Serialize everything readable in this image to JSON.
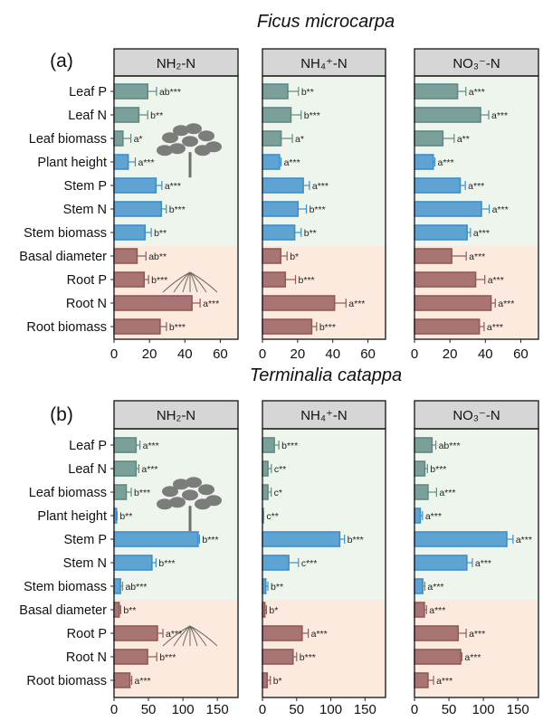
{
  "chart_data": [
    {
      "type": "bar",
      "orientation": "horizontal",
      "panel_label": "(a)",
      "title": "Ficus microcarpa",
      "categories": [
        "Leaf P",
        "Leaf N",
        "Leaf biomass",
        "Plant height",
        "Stem P",
        "Stem N",
        "Stem biomass",
        "Basal diameter",
        "Root P",
        "Root N",
        "Root biomass"
      ],
      "category_groups": {
        "leaf": [
          0,
          1,
          2
        ],
        "stem": [
          3,
          4,
          5,
          6
        ],
        "root": [
          7,
          8,
          9,
          10
        ]
      },
      "xlim": [
        0,
        70
      ],
      "xticks": [
        0,
        20,
        40,
        60
      ],
      "facets": [
        {
          "name": "NH₂-N",
          "values": [
            19,
            14,
            5,
            8,
            23.7,
            26.7,
            17.5,
            13,
            17,
            44,
            26
          ],
          "errors": [
            5,
            5,
            4.5,
            4,
            3.3,
            2.8,
            3.5,
            5,
            2.5,
            4.6,
            3.6
          ],
          "labels": [
            "ab***",
            "b**",
            "a*",
            "a***",
            "a***",
            "b***",
            "b**",
            "ab**",
            "b***",
            "a***",
            "b***"
          ]
        },
        {
          "name": "NH₄⁺-N",
          "values": [
            14.4,
            16.2,
            10.6,
            9.7,
            23.2,
            20.2,
            18.3,
            10.4,
            13,
            41,
            28
          ],
          "errors": [
            6.1,
            5.8,
            6.4,
            0.9,
            3.5,
            4.8,
            3.7,
            3.6,
            5.8,
            6.5,
            2.8
          ],
          "labels": [
            "b**",
            "b***",
            "a*",
            "a***",
            "a***",
            "b***",
            "b**",
            "b*",
            "b***",
            "a***",
            "b***"
          ]
        },
        {
          "name": "NO₃⁻-N",
          "values": [
            24.3,
            37.3,
            16,
            10.6,
            25.8,
            37.8,
            29.7,
            21,
            34.5,
            43.2,
            36.6
          ],
          "errors": [
            4.7,
            4.6,
            6.4,
            0.9,
            2.9,
            4.4,
            1.9,
            8.2,
            5.2,
            2.4,
            2.7
          ],
          "labels": [
            "a***",
            "a***",
            "a**",
            "a***",
            "a***",
            "a***",
            "a***",
            "a***",
            "a***",
            "a***",
            "a***"
          ]
        }
      ]
    },
    {
      "type": "bar",
      "orientation": "horizontal",
      "panel_label": "(b)",
      "title": "Terminalia catappa",
      "categories": [
        "Leaf P",
        "Leaf N",
        "Leaf biomass",
        "Plant height",
        "Stem P",
        "Stem N",
        "Stem biomass",
        "Basal diameter",
        "Root P",
        "Root N",
        "Root biomass"
      ],
      "category_groups": {
        "leaf": [
          0,
          1,
          2
        ],
        "stem": [
          3,
          4,
          5,
          6
        ],
        "root": [
          7,
          8,
          9,
          10
        ]
      },
      "xlim": [
        0,
        180
      ],
      "xticks": [
        0,
        50,
        100,
        150
      ],
      "facets": [
        {
          "name": "NH₂-N",
          "values": [
            32,
            32,
            17.7,
            3.5,
            122,
            55,
            9.3,
            7.5,
            63,
            48.7,
            23
          ],
          "errors": [
            5.6,
            4,
            7.3,
            0.9,
            2,
            6,
            3.1,
            2.2,
            8,
            13.3,
            2.7
          ],
          "labels": [
            "a***",
            "a***",
            "b***",
            "b**",
            "b***",
            "b***",
            "ab***",
            "b**",
            "a***",
            "b***",
            "a***"
          ]
        },
        {
          "name": "NH₄⁺-N",
          "values": [
            17.3,
            8,
            8,
            1.3,
            113,
            38.5,
            4.9,
            3.5,
            58,
            44.7,
            7
          ],
          "errors": [
            6.7,
            5,
            4.8,
            0.5,
            7,
            14.2,
            3.1,
            2.3,
            9,
            5.3,
            4.5
          ],
          "labels": [
            "b***",
            "c**",
            "c*",
            "c**",
            "b***",
            "c***",
            "b**",
            "b*",
            "a***",
            "b***",
            "b*"
          ]
        },
        {
          "name": "NO₃⁻-N",
          "values": [
            25.4,
            15,
            19.6,
            8.5,
            134,
            76,
            12,
            14.3,
            63.4,
            67,
            19.6
          ],
          "errors": [
            5.6,
            3.8,
            12.4,
            3.1,
            9,
            8,
            3,
            3.1,
            11.6,
            1.8,
            8.1
          ],
          "labels": [
            "ab***",
            "b***",
            "a***",
            "a***",
            "a***",
            "a***",
            "a***",
            "a***",
            "a***",
            "a***",
            "a***"
          ]
        }
      ]
    }
  ],
  "colors": {
    "leaf": "#5e8985",
    "stem": "#3a8fcb",
    "root": "#93585a",
    "header": "#d6d6d6",
    "shoot_bg": "#eef5ec",
    "root_bg": "#fbeadd"
  }
}
